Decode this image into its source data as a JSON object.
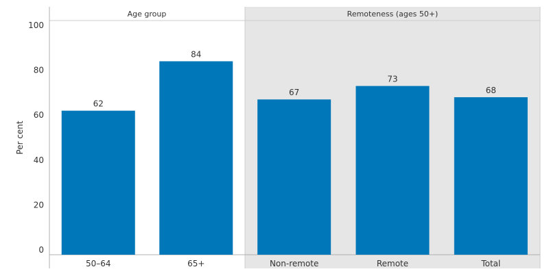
{
  "chart_data": {
    "type": "bar",
    "ylabel": "Per cent",
    "ylim": [
      0,
      100
    ],
    "yticks": [
      0,
      20,
      40,
      60,
      80,
      100
    ],
    "grid": false,
    "colors": {
      "bar": "#0077b8",
      "panel_shade": "#e6e6e6",
      "panel_border": "#cccccc"
    },
    "panels": [
      {
        "title": "Age group",
        "shaded": false,
        "categories": [
          "50–64",
          "65+"
        ],
        "values": [
          62,
          84
        ]
      },
      {
        "title": "Remoteness (ages 50+)",
        "shaded": true,
        "categories": [
          "Non-remote",
          "Remote",
          "Total"
        ],
        "values": [
          67,
          73,
          68
        ]
      }
    ]
  }
}
